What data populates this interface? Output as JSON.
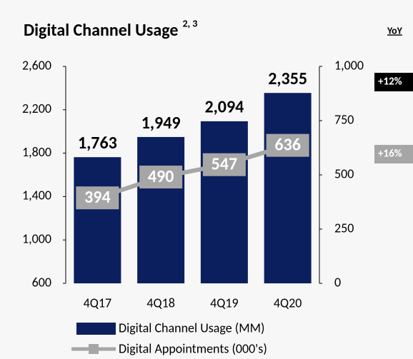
{
  "chart_data": {
    "type": "bar_line",
    "title": "Digital Channel Usage",
    "title_note": "2, 3",
    "categories": [
      "4Q17",
      "4Q18",
      "4Q19",
      "4Q20"
    ],
    "series": [
      {
        "name": "Digital Channel Usage (MM)",
        "type": "bar",
        "color": "#0b1f5e",
        "values": [
          1763,
          1949,
          2094,
          2355
        ],
        "value_labels": [
          "1,763",
          "1,949",
          "2,094",
          "2,355"
        ]
      },
      {
        "name": "Digital Appointments (000's)",
        "type": "line",
        "axis": "y2",
        "color": "#a6a6a6",
        "values": [
          394,
          490,
          547,
          636
        ]
      }
    ],
    "ylim": [
      600,
      2600
    ],
    "yticks": [
      600,
      {
        "value": 1000,
        "label": "1,000"
      },
      {
        "value": 1400,
        "label": "1,400"
      },
      {
        "value": 1800,
        "label": "1,800"
      },
      {
        "value": 2200,
        "label": "2,200"
      },
      {
        "value": 2600,
        "label": "2,600"
      }
    ],
    "y2lim": [
      0,
      1000
    ],
    "y2ticks": [
      0,
      250,
      500,
      750,
      {
        "value": 1000,
        "label": "1,000"
      }
    ],
    "annotations": {
      "header": "YoY",
      "bar_change": "+12%",
      "line_change": "+16%"
    }
  }
}
